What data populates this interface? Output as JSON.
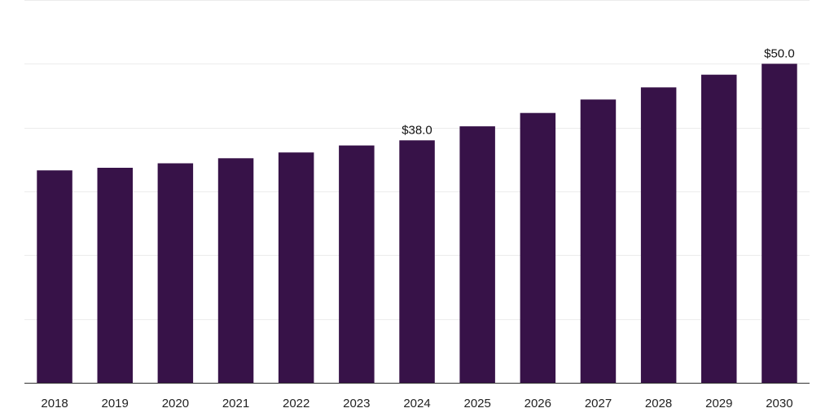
{
  "chart_data": {
    "type": "bar",
    "title": "",
    "xlabel": "",
    "ylabel": "",
    "categories": [
      "2018",
      "2019",
      "2020",
      "2021",
      "2022",
      "2023",
      "2024",
      "2025",
      "2026",
      "2027",
      "2028",
      "2029",
      "2030"
    ],
    "values": [
      33.3,
      33.7,
      34.4,
      35.2,
      36.1,
      37.2,
      38.0,
      40.2,
      42.3,
      44.4,
      46.3,
      48.3,
      50.0
    ],
    "ylim": [
      0,
      60
    ],
    "grid": true,
    "y_tick_labels_shown": false,
    "bar_color": "#371248",
    "data_labels": [
      {
        "category": "2024",
        "text": "$38.0"
      },
      {
        "category": "2030",
        "text": "$50.0"
      }
    ]
  }
}
